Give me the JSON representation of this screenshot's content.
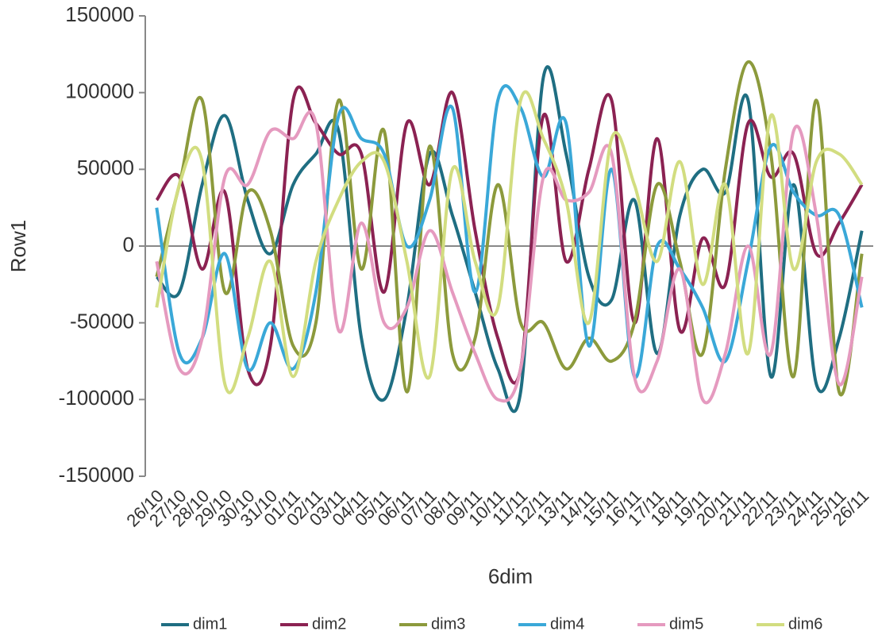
{
  "chart_data": {
    "type": "line",
    "x_label": "6dim",
    "y_label": "Row1",
    "categories": [
      "26/10",
      "27/10",
      "28/10",
      "29/10",
      "30/10",
      "31/10",
      "01/11",
      "02/11",
      "03/11",
      "04/11",
      "05/11",
      "06/11",
      "07/11",
      "08/11",
      "09/11",
      "10/11",
      "11/11",
      "12/11",
      "13/11",
      "14/11",
      "15/11",
      "16/11",
      "17/11",
      "18/11",
      "19/11",
      "20/11",
      "21/11",
      "22/11",
      "23/11",
      "24/11",
      "25/11",
      "26/11"
    ],
    "series": [
      {
        "name": "dim1",
        "color": "#1f6e82",
        "values": [
          -20000,
          -30000,
          40000,
          85000,
          30000,
          -5000,
          40000,
          60000,
          75000,
          -60000,
          -100000,
          -40000,
          60000,
          20000,
          -30000,
          -80000,
          -95000,
          110000,
          60000,
          -20000,
          -35000,
          30000,
          -70000,
          20000,
          50000,
          35000,
          95000,
          -85000,
          40000,
          -90000,
          -60000,
          10000
        ]
      },
      {
        "name": "dim2",
        "color": "#8b2252",
        "values": [
          30000,
          45000,
          -15000,
          35000,
          -80000,
          -65000,
          95000,
          80000,
          60000,
          60000,
          -30000,
          80000,
          40000,
          100000,
          10000,
          -60000,
          -80000,
          85000,
          -10000,
          50000,
          95000,
          -50000,
          70000,
          -55000,
          5000,
          -25000,
          80000,
          45000,
          60000,
          -5000,
          15000,
          40000
        ]
      },
      {
        "name": "dim3",
        "color": "#8c9a3c",
        "values": [
          -20000,
          40000,
          95000,
          -30000,
          35000,
          10000,
          -65000,
          -50000,
          95000,
          -15000,
          75000,
          -95000,
          65000,
          -70000,
          -60000,
          40000,
          -50000,
          -50000,
          -80000,
          -60000,
          -75000,
          -50000,
          40000,
          -10000,
          -70000,
          50000,
          120000,
          60000,
          -85000,
          95000,
          -95000,
          -5000
        ]
      },
      {
        "name": "dim4",
        "color": "#3aa8d8",
        "values": [
          25000,
          -70000,
          -60000,
          -5000,
          -80000,
          -50000,
          -80000,
          -30000,
          85000,
          70000,
          60000,
          0,
          30000,
          90000,
          -30000,
          95000,
          90000,
          45000,
          80000,
          -65000,
          50000,
          -85000,
          0,
          -15000,
          -40000,
          -75000,
          -10000,
          65000,
          35000,
          20000,
          20000,
          -40000
        ]
      },
      {
        "name": "dim5",
        "color": "#e59abf",
        "values": [
          -10000,
          -80000,
          -60000,
          45000,
          40000,
          75000,
          70000,
          80000,
          -55000,
          15000,
          -50000,
          -40000,
          10000,
          -30000,
          -70000,
          -100000,
          -80000,
          45000,
          30000,
          35000,
          60000,
          -85000,
          -75000,
          -15000,
          -100000,
          -70000,
          0,
          -70000,
          75000,
          20000,
          -90000,
          -20000
        ]
      },
      {
        "name": "dim6",
        "color": "#d2dd80",
        "values": [
          -40000,
          40000,
          55000,
          -90000,
          -60000,
          -10000,
          -85000,
          -10000,
          30000,
          55000,
          55000,
          -10000,
          -85000,
          50000,
          -10000,
          -40000,
          95000,
          70000,
          30000,
          -50000,
          70000,
          40000,
          -10000,
          55000,
          -25000,
          40000,
          -70000,
          85000,
          -15000,
          55000,
          60000,
          40000
        ]
      }
    ],
    "ylim": [
      -150000,
      150000
    ],
    "yticks": [
      -150000,
      -100000,
      -50000,
      0,
      50000,
      100000,
      150000
    ],
    "grid": false,
    "legend": "bottom"
  }
}
